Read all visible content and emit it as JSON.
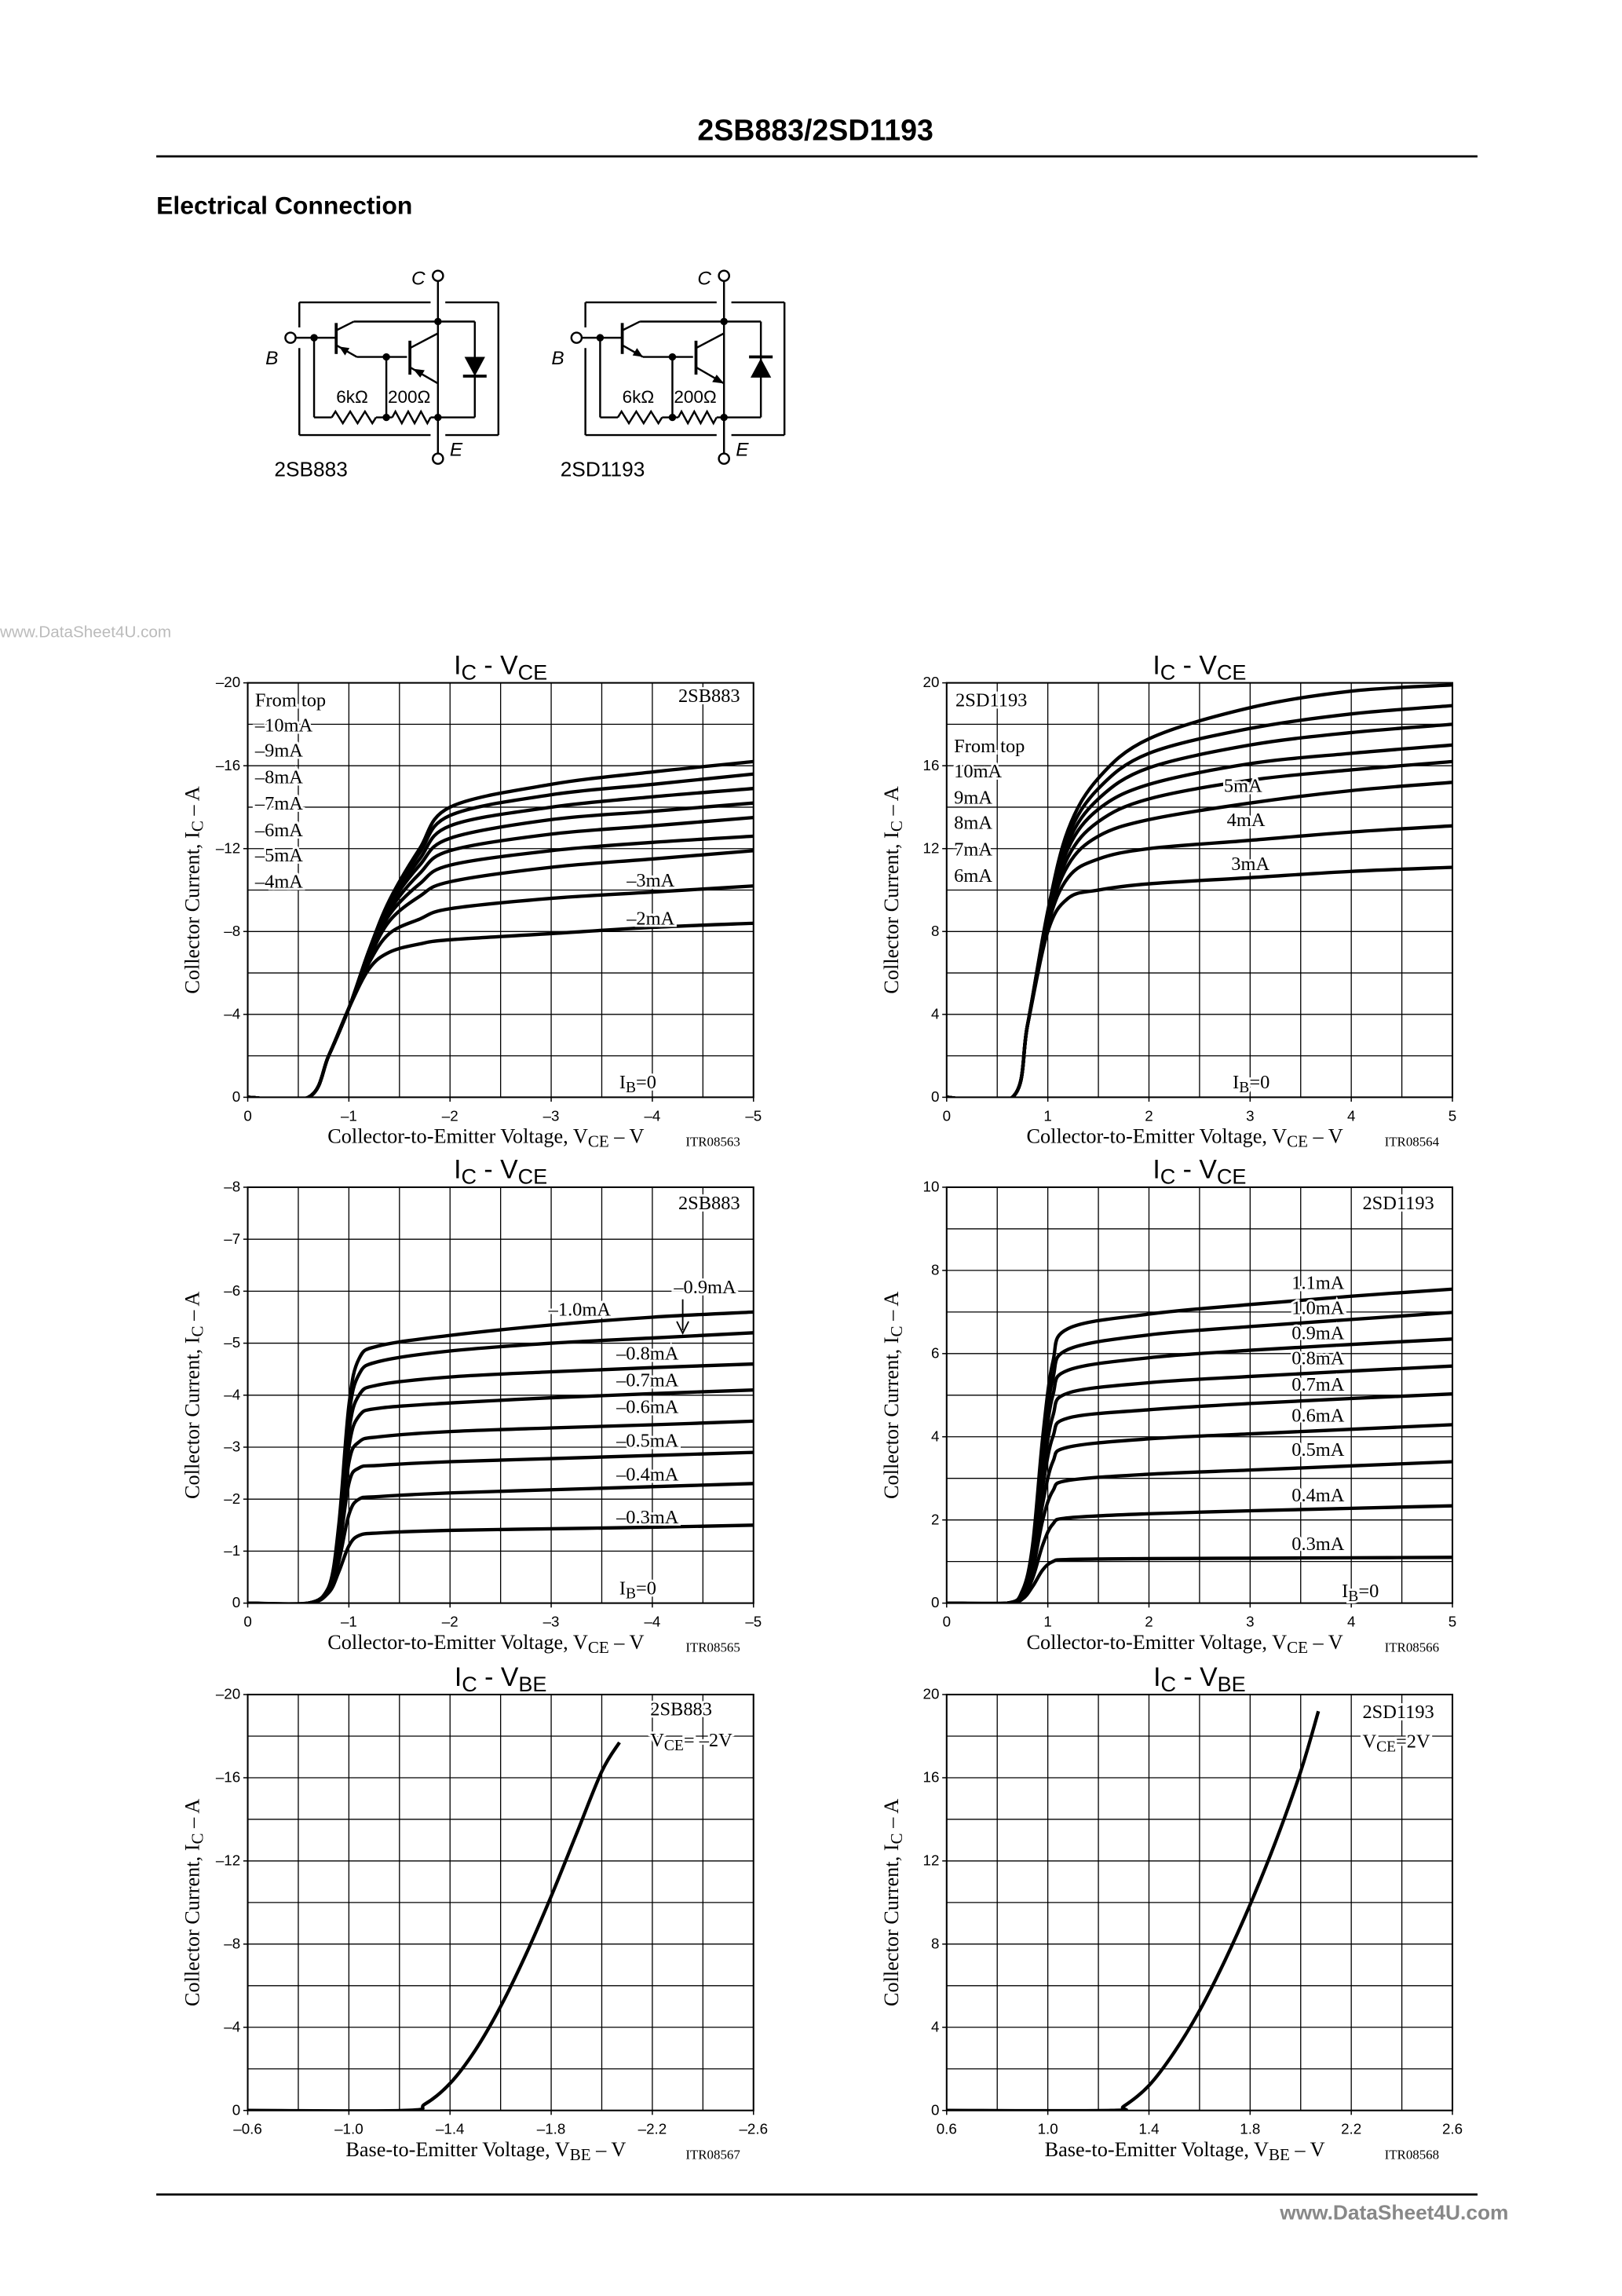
{
  "header": {
    "title": "2SB883/2SD1193",
    "section": "Electrical Connection"
  },
  "watermark": "www.DataSheet4U.com",
  "diagrams": [
    {
      "label": "2SB883",
      "terminals": [
        "C",
        "B",
        "E"
      ],
      "resistors": [
        "6kΩ",
        "200Ω"
      ]
    },
    {
      "label": "2SD1193",
      "terminals": [
        "C",
        "B",
        "E"
      ],
      "resistors": [
        "6kΩ",
        "200Ω"
      ]
    }
  ],
  "chart_data": [
    {
      "type": "line",
      "title": [
        "I",
        "C",
        " - V",
        "CE"
      ],
      "xlabel": [
        "Collector-to-Emitter Voltage, V",
        "CE",
        "  –  V"
      ],
      "ylabel": [
        "Collector Current, I",
        "C",
        "  –  A"
      ],
      "code": "ITR08563",
      "device": "2SB883",
      "legend_title": "From top",
      "bias_label": [
        "I",
        "B",
        "=0"
      ],
      "xlim": [
        0,
        -5
      ],
      "xticks": [
        0,
        {
          "value": -1,
          "label": "–1"
        },
        {
          "value": -2,
          "label": "–2"
        },
        {
          "value": -3,
          "label": "–3"
        },
        {
          "value": -4,
          "label": "–4"
        },
        {
          "value": -5,
          "label": "–5"
        }
      ],
      "ylim": [
        0,
        -20
      ],
      "yticks": [
        0,
        {
          "value": -4,
          "label": "–4"
        },
        {
          "value": -8,
          "label": "–8"
        },
        {
          "value": -12,
          "label": "–12"
        },
        {
          "value": -16,
          "label": "–16"
        },
        {
          "value": -20,
          "label": "–20"
        }
      ],
      "xgrid": [
        -0.5,
        -1,
        -1.5,
        -2,
        -2.5,
        -3,
        -3.5,
        -4,
        -4.5
      ],
      "ygrid": [
        -2,
        -4,
        -6,
        -8,
        -10,
        -12,
        -14,
        -16,
        -18
      ],
      "x": [
        0,
        -0.6,
        -0.8,
        -1.0,
        -1.2,
        -1.4,
        -1.7,
        -2,
        -3,
        -4,
        -5
      ],
      "series": [
        {
          "name": "–10mA",
          "color": "#000",
          "values": [
            0,
            0,
            -2,
            -4.3,
            -7.1,
            -9.5,
            -12.0,
            -14.0,
            -15.1,
            -15.7,
            -16.2
          ]
        },
        {
          "name": "–9mA",
          "color": "#000",
          "values": [
            0,
            0,
            -2,
            -4.3,
            -7.1,
            -9.4,
            -11.8,
            -13.6,
            -14.6,
            -15.1,
            -15.6
          ]
        },
        {
          "name": "–8mA",
          "color": "#000",
          "values": [
            0,
            0,
            -2,
            -4.3,
            -7.0,
            -9.3,
            -11.5,
            -13.1,
            -14.0,
            -14.5,
            -14.9
          ]
        },
        {
          "name": "–7mA",
          "color": "#000",
          "values": [
            0,
            0,
            -2,
            -4.3,
            -7.0,
            -9.2,
            -11.2,
            -12.5,
            -13.4,
            -13.8,
            -14.2
          ]
        },
        {
          "name": "–6mA",
          "color": "#000",
          "values": [
            0,
            0,
            -2,
            -4.3,
            -6.9,
            -9.0,
            -10.8,
            -11.9,
            -12.7,
            -13.1,
            -13.5
          ]
        },
        {
          "name": "–5mA",
          "color": "#000",
          "values": [
            0,
            0,
            -2,
            -4.3,
            -6.8,
            -8.8,
            -10.3,
            -11.2,
            -11.9,
            -12.3,
            -12.6
          ]
        },
        {
          "name": "–4mA",
          "color": "#000",
          "values": [
            0,
            0,
            -2,
            -4.3,
            -6.7,
            -8.5,
            -9.7,
            -10.4,
            -11.1,
            -11.5,
            -11.9
          ]
        },
        {
          "name": "–3mA",
          "color": "#000",
          "values": [
            0,
            0,
            -2,
            -4.3,
            -6.5,
            -7.9,
            -8.6,
            -9.1,
            -9.6,
            -9.9,
            -10.2
          ]
        },
        {
          "name": "–2mA",
          "color": "#000",
          "values": [
            0,
            0,
            -2,
            -4.3,
            -6.2,
            -7.0,
            -7.4,
            -7.6,
            -7.9,
            -8.2,
            -8.4
          ]
        }
      ]
    },
    {
      "type": "line",
      "title": [
        "I",
        "C",
        " - V",
        "CE"
      ],
      "xlabel": [
        "Collector-to-Emitter Voltage, V",
        "CE",
        "  –  V"
      ],
      "ylabel": [
        "Collector Current, I",
        "C",
        "  –  A"
      ],
      "code": "ITR08564",
      "device": "2SD1193",
      "legend_title": "From top",
      "bias_label": [
        "I",
        "B",
        "=0"
      ],
      "xlim": [
        0,
        5
      ],
      "xticks": [
        0,
        1,
        2,
        3,
        4,
        5
      ],
      "ylim": [
        0,
        20
      ],
      "yticks": [
        0,
        4,
        8,
        12,
        16,
        20
      ],
      "xgrid": [
        0.5,
        1,
        1.5,
        2,
        2.5,
        3,
        3.5,
        4,
        4.5
      ],
      "ygrid": [
        2,
        4,
        6,
        8,
        10,
        12,
        14,
        16,
        18
      ],
      "x": [
        0,
        0.65,
        0.8,
        1.0,
        1.2,
        1.5,
        2,
        3,
        4,
        5
      ],
      "series": [
        {
          "name": "10mA",
          "color": "#000",
          "values": [
            0,
            0,
            3.5,
            9.0,
            12.9,
            15.4,
            17.3,
            18.8,
            19.6,
            19.9
          ]
        },
        {
          "name": "9mA",
          "color": "#000",
          "values": [
            0,
            0,
            3.5,
            8.9,
            12.6,
            14.9,
            16.6,
            17.8,
            18.5,
            18.9
          ]
        },
        {
          "name": "8mA",
          "color": "#000",
          "values": [
            0,
            0,
            3.5,
            8.8,
            12.3,
            14.4,
            15.9,
            17.0,
            17.6,
            18.0
          ]
        },
        {
          "name": "7mA",
          "color": "#000",
          "values": [
            0,
            0,
            3.5,
            8.7,
            12.0,
            13.9,
            15.1,
            16.1,
            16.6,
            17.0
          ]
        },
        {
          "name": "6mA",
          "color": "#000",
          "values": [
            0,
            0,
            3.5,
            8.6,
            11.6,
            13.3,
            14.4,
            15.3,
            15.8,
            16.2
          ]
        },
        {
          "name": "5mA",
          "color": "#000",
          "values": [
            0,
            0,
            3.5,
            8.5,
            11.2,
            12.6,
            13.4,
            14.2,
            14.8,
            15.2
          ]
        },
        {
          "name": "4mA",
          "color": "#000",
          "values": [
            0,
            0,
            3.5,
            8.3,
            10.6,
            11.5,
            12.0,
            12.4,
            12.8,
            13.1
          ]
        },
        {
          "name": "3mA",
          "color": "#000",
          "values": [
            0,
            0,
            3.5,
            8.0,
            9.6,
            10.0,
            10.3,
            10.6,
            10.9,
            11.1
          ]
        }
      ]
    },
    {
      "type": "line",
      "title": [
        "I",
        "C",
        " - V",
        "CE"
      ],
      "xlabel": [
        "Collector-to-Emitter Voltage, V",
        "CE",
        "  –  V"
      ],
      "ylabel": [
        "Collector Current, I",
        "C",
        "  –  A"
      ],
      "code": "ITR08565",
      "device": "2SB883",
      "bias_label": [
        "I",
        "B",
        "=0"
      ],
      "xlim": [
        0,
        -5
      ],
      "xticks": [
        0,
        {
          "value": -1,
          "label": "–1"
        },
        {
          "value": -2,
          "label": "–2"
        },
        {
          "value": -3,
          "label": "–3"
        },
        {
          "value": -4,
          "label": "–4"
        },
        {
          "value": -5,
          "label": "–5"
        }
      ],
      "ylim": [
        0,
        -8
      ],
      "yticks": [
        0,
        {
          "value": -1,
          "label": "–1"
        },
        {
          "value": -2,
          "label": "–2"
        },
        {
          "value": -3,
          "label": "–3"
        },
        {
          "value": -4,
          "label": "–4"
        },
        {
          "value": -5,
          "label": "–5"
        },
        {
          "value": -6,
          "label": "–6"
        },
        {
          "value": -7,
          "label": "–7"
        },
        {
          "value": -8,
          "label": "–8"
        }
      ],
      "xgrid": [
        -0.5,
        -1,
        -1.5,
        -2,
        -2.5,
        -3,
        -3.5,
        -4,
        -4.5
      ],
      "ygrid": [
        -1,
        -2,
        -3,
        -4,
        -5,
        -6,
        -7
      ],
      "x": [
        0,
        -0.6,
        -0.8,
        -0.9,
        -1.0,
        -1.1,
        -1.3,
        -2,
        -3,
        -4,
        -5
      ],
      "series": [
        {
          "name": "–1.0mA",
          "color": "#000",
          "values": [
            0,
            0,
            -0.3,
            -1.5,
            -3.8,
            -4.7,
            -4.95,
            -5.15,
            -5.35,
            -5.5,
            -5.6
          ]
        },
        {
          "name": "–0.9mA",
          "color": "#000",
          "values": [
            0,
            0,
            -0.3,
            -1.4,
            -3.6,
            -4.4,
            -4.65,
            -4.85,
            -5.0,
            -5.1,
            -5.2
          ]
        },
        {
          "name": "–0.8mA",
          "color": "#000",
          "values": [
            0,
            0,
            -0.3,
            -1.3,
            -3.3,
            -4.0,
            -4.2,
            -4.35,
            -4.45,
            -4.53,
            -4.6
          ]
        },
        {
          "name": "–0.7mA",
          "color": "#000",
          "values": [
            0,
            0,
            -0.3,
            -1.2,
            -3.0,
            -3.6,
            -3.75,
            -3.85,
            -3.95,
            -4.03,
            -4.1
          ]
        },
        {
          "name": "–0.6mA",
          "color": "#000",
          "values": [
            0,
            0,
            -0.3,
            -1.1,
            -2.7,
            -3.1,
            -3.2,
            -3.3,
            -3.37,
            -3.43,
            -3.5
          ]
        },
        {
          "name": "–0.5mA",
          "color": "#000",
          "values": [
            0,
            0,
            -0.3,
            -1.0,
            -2.3,
            -2.6,
            -2.65,
            -2.72,
            -2.78,
            -2.84,
            -2.9
          ]
        },
        {
          "name": "–0.4mA",
          "color": "#000",
          "values": [
            0,
            0,
            -0.25,
            -0.8,
            -1.7,
            -2.0,
            -2.05,
            -2.12,
            -2.18,
            -2.24,
            -2.3
          ]
        },
        {
          "name": "–0.3mA",
          "color": "#000",
          "values": [
            0,
            0,
            -0.2,
            -0.6,
            -1.1,
            -1.3,
            -1.35,
            -1.4,
            -1.43,
            -1.46,
            -1.5
          ]
        }
      ]
    },
    {
      "type": "line",
      "title": [
        "I",
        "C",
        " - V",
        "CE"
      ],
      "xlabel": [
        "Collector-to-Emitter Voltage, V",
        "CE",
        "  –  V"
      ],
      "ylabel": [
        "Collector Current, I",
        "C",
        "  –  A"
      ],
      "code": "ITR08566",
      "device": "2SD1193",
      "bias_label": [
        "I",
        "B",
        "=0"
      ],
      "xlim": [
        0,
        5
      ],
      "xticks": [
        0,
        1,
        2,
        3,
        4,
        5
      ],
      "ylim": [
        0,
        10
      ],
      "yticks": [
        0,
        2,
        4,
        6,
        8,
        10
      ],
      "xgrid": [
        0.5,
        1,
        1.5,
        2,
        2.5,
        3,
        3.5,
        4,
        4.5
      ],
      "ygrid": [
        1,
        2,
        3,
        4,
        5,
        6,
        7,
        8,
        9
      ],
      "x": [
        0,
        0.6,
        0.75,
        0.85,
        0.95,
        1.05,
        1.2,
        2,
        3,
        4,
        5
      ],
      "series": [
        {
          "name": "1.1mA",
          "color": "#000",
          "values": [
            0,
            0,
            0.3,
            1.4,
            4.0,
            5.8,
            6.6,
            6.95,
            7.18,
            7.38,
            7.55
          ]
        },
        {
          "name": "1.0mA",
          "color": "#000",
          "values": [
            0,
            0,
            0.3,
            1.3,
            3.7,
            5.4,
            6.1,
            6.45,
            6.65,
            6.82,
            6.99
          ]
        },
        {
          "name": "0.9mA",
          "color": "#000",
          "values": [
            0,
            0,
            0.3,
            1.2,
            3.4,
            5.0,
            5.6,
            5.9,
            6.08,
            6.22,
            6.35
          ]
        },
        {
          "name": "0.8mA",
          "color": "#000",
          "values": [
            0,
            0,
            0.25,
            1.1,
            3.1,
            4.5,
            5.05,
            5.3,
            5.45,
            5.58,
            5.7
          ]
        },
        {
          "name": "0.7mA",
          "color": "#000",
          "values": [
            0,
            0,
            0.25,
            1.0,
            2.8,
            4.0,
            4.45,
            4.65,
            4.8,
            4.92,
            5.03
          ]
        },
        {
          "name": "0.6mA",
          "color": "#000",
          "values": [
            0,
            0,
            0.2,
            0.9,
            2.4,
            3.4,
            3.75,
            3.95,
            4.07,
            4.18,
            4.29
          ]
        },
        {
          "name": "0.5mA",
          "color": "#000",
          "values": [
            0,
            0,
            0.2,
            0.8,
            2.0,
            2.7,
            2.95,
            3.1,
            3.2,
            3.3,
            3.4
          ]
        },
        {
          "name": "0.4mA",
          "color": "#000",
          "values": [
            0,
            0,
            0.15,
            0.6,
            1.4,
            1.9,
            2.05,
            2.15,
            2.22,
            2.28,
            2.34
          ]
        },
        {
          "name": "0.3mA",
          "color": "#000",
          "values": [
            0,
            0,
            0.1,
            0.4,
            0.8,
            1.0,
            1.05,
            1.07,
            1.08,
            1.09,
            1.1
          ]
        }
      ]
    },
    {
      "type": "line",
      "title": [
        "I",
        "C",
        " - V",
        "BE"
      ],
      "xlabel": [
        "Base-to-Emitter Voltage, V",
        "BE",
        "  –  V"
      ],
      "ylabel": [
        "Collector Current, I",
        "C",
        "  –  A"
      ],
      "code": "ITR08567",
      "device": "2SB883",
      "condition": [
        "V",
        "CE",
        "= –2V"
      ],
      "xlim": [
        -0.6,
        -2.6
      ],
      "xticks": [
        {
          "value": -0.6,
          "label": "–0.6"
        },
        {
          "value": -1.0,
          "label": "–1.0"
        },
        {
          "value": -1.4,
          "label": "–1.4"
        },
        {
          "value": -1.8,
          "label": "–1.8"
        },
        {
          "value": -2.2,
          "label": "–2.2"
        },
        {
          "value": -2.6,
          "label": "–2.6"
        }
      ],
      "ylim": [
        0,
        -20
      ],
      "yticks": [
        0,
        {
          "value": -4,
          "label": "–4"
        },
        {
          "value": -8,
          "label": "–8"
        },
        {
          "value": -12,
          "label": "–12"
        },
        {
          "value": -16,
          "label": "–16"
        },
        {
          "value": -20,
          "label": "–20"
        }
      ],
      "xgrid": [
        -0.8,
        -1.0,
        -1.2,
        -1.4,
        -1.6,
        -1.8,
        -2.0,
        -2.2,
        -2.4
      ],
      "ygrid": [
        -2,
        -4,
        -6,
        -8,
        -10,
        -12,
        -14,
        -16,
        -18
      ],
      "x": [
        -0.6,
        -1.22,
        -1.3,
        -1.4,
        -1.5,
        -1.6,
        -1.7,
        -1.8,
        -1.9,
        -2.0,
        -2.07
      ],
      "color": "#000",
      "values": [
        0,
        0,
        -0.3,
        -1.3,
        -2.9,
        -5.0,
        -7.5,
        -10.3,
        -13.3,
        -16.3,
        -17.7
      ]
    },
    {
      "type": "line",
      "title": [
        "I",
        "C",
        " - V",
        "BE"
      ],
      "xlabel": [
        "Base-to-Emitter Voltage, V",
        "BE",
        "  –  V"
      ],
      "ylabel": [
        "Collector Current, I",
        "C",
        "  –  A"
      ],
      "code": "ITR08568",
      "device": "2SD1193",
      "condition": [
        "V",
        "CE",
        "=2V"
      ],
      "xlim": [
        0.6,
        2.6
      ],
      "xticks": [
        0.6,
        {
          "value": 1,
          "label": "1.0"
        },
        1.4,
        1.8,
        2.2,
        2.6
      ],
      "ylim": [
        0,
        20
      ],
      "yticks": [
        0,
        4,
        8,
        12,
        16,
        20
      ],
      "xgrid": [
        0.8,
        1.0,
        1.2,
        1.4,
        1.6,
        1.8,
        2.0,
        2.2,
        2.4
      ],
      "ygrid": [
        2,
        4,
        6,
        8,
        10,
        12,
        14,
        16,
        18
      ],
      "x": [
        0.6,
        1.25,
        1.3,
        1.4,
        1.5,
        1.6,
        1.7,
        1.8,
        1.9,
        2.0,
        2.07
      ],
      "color": "#000",
      "values": [
        0,
        0,
        0.2,
        1.2,
        2.8,
        4.8,
        7.2,
        9.9,
        12.9,
        16.3,
        19.2
      ]
    }
  ]
}
